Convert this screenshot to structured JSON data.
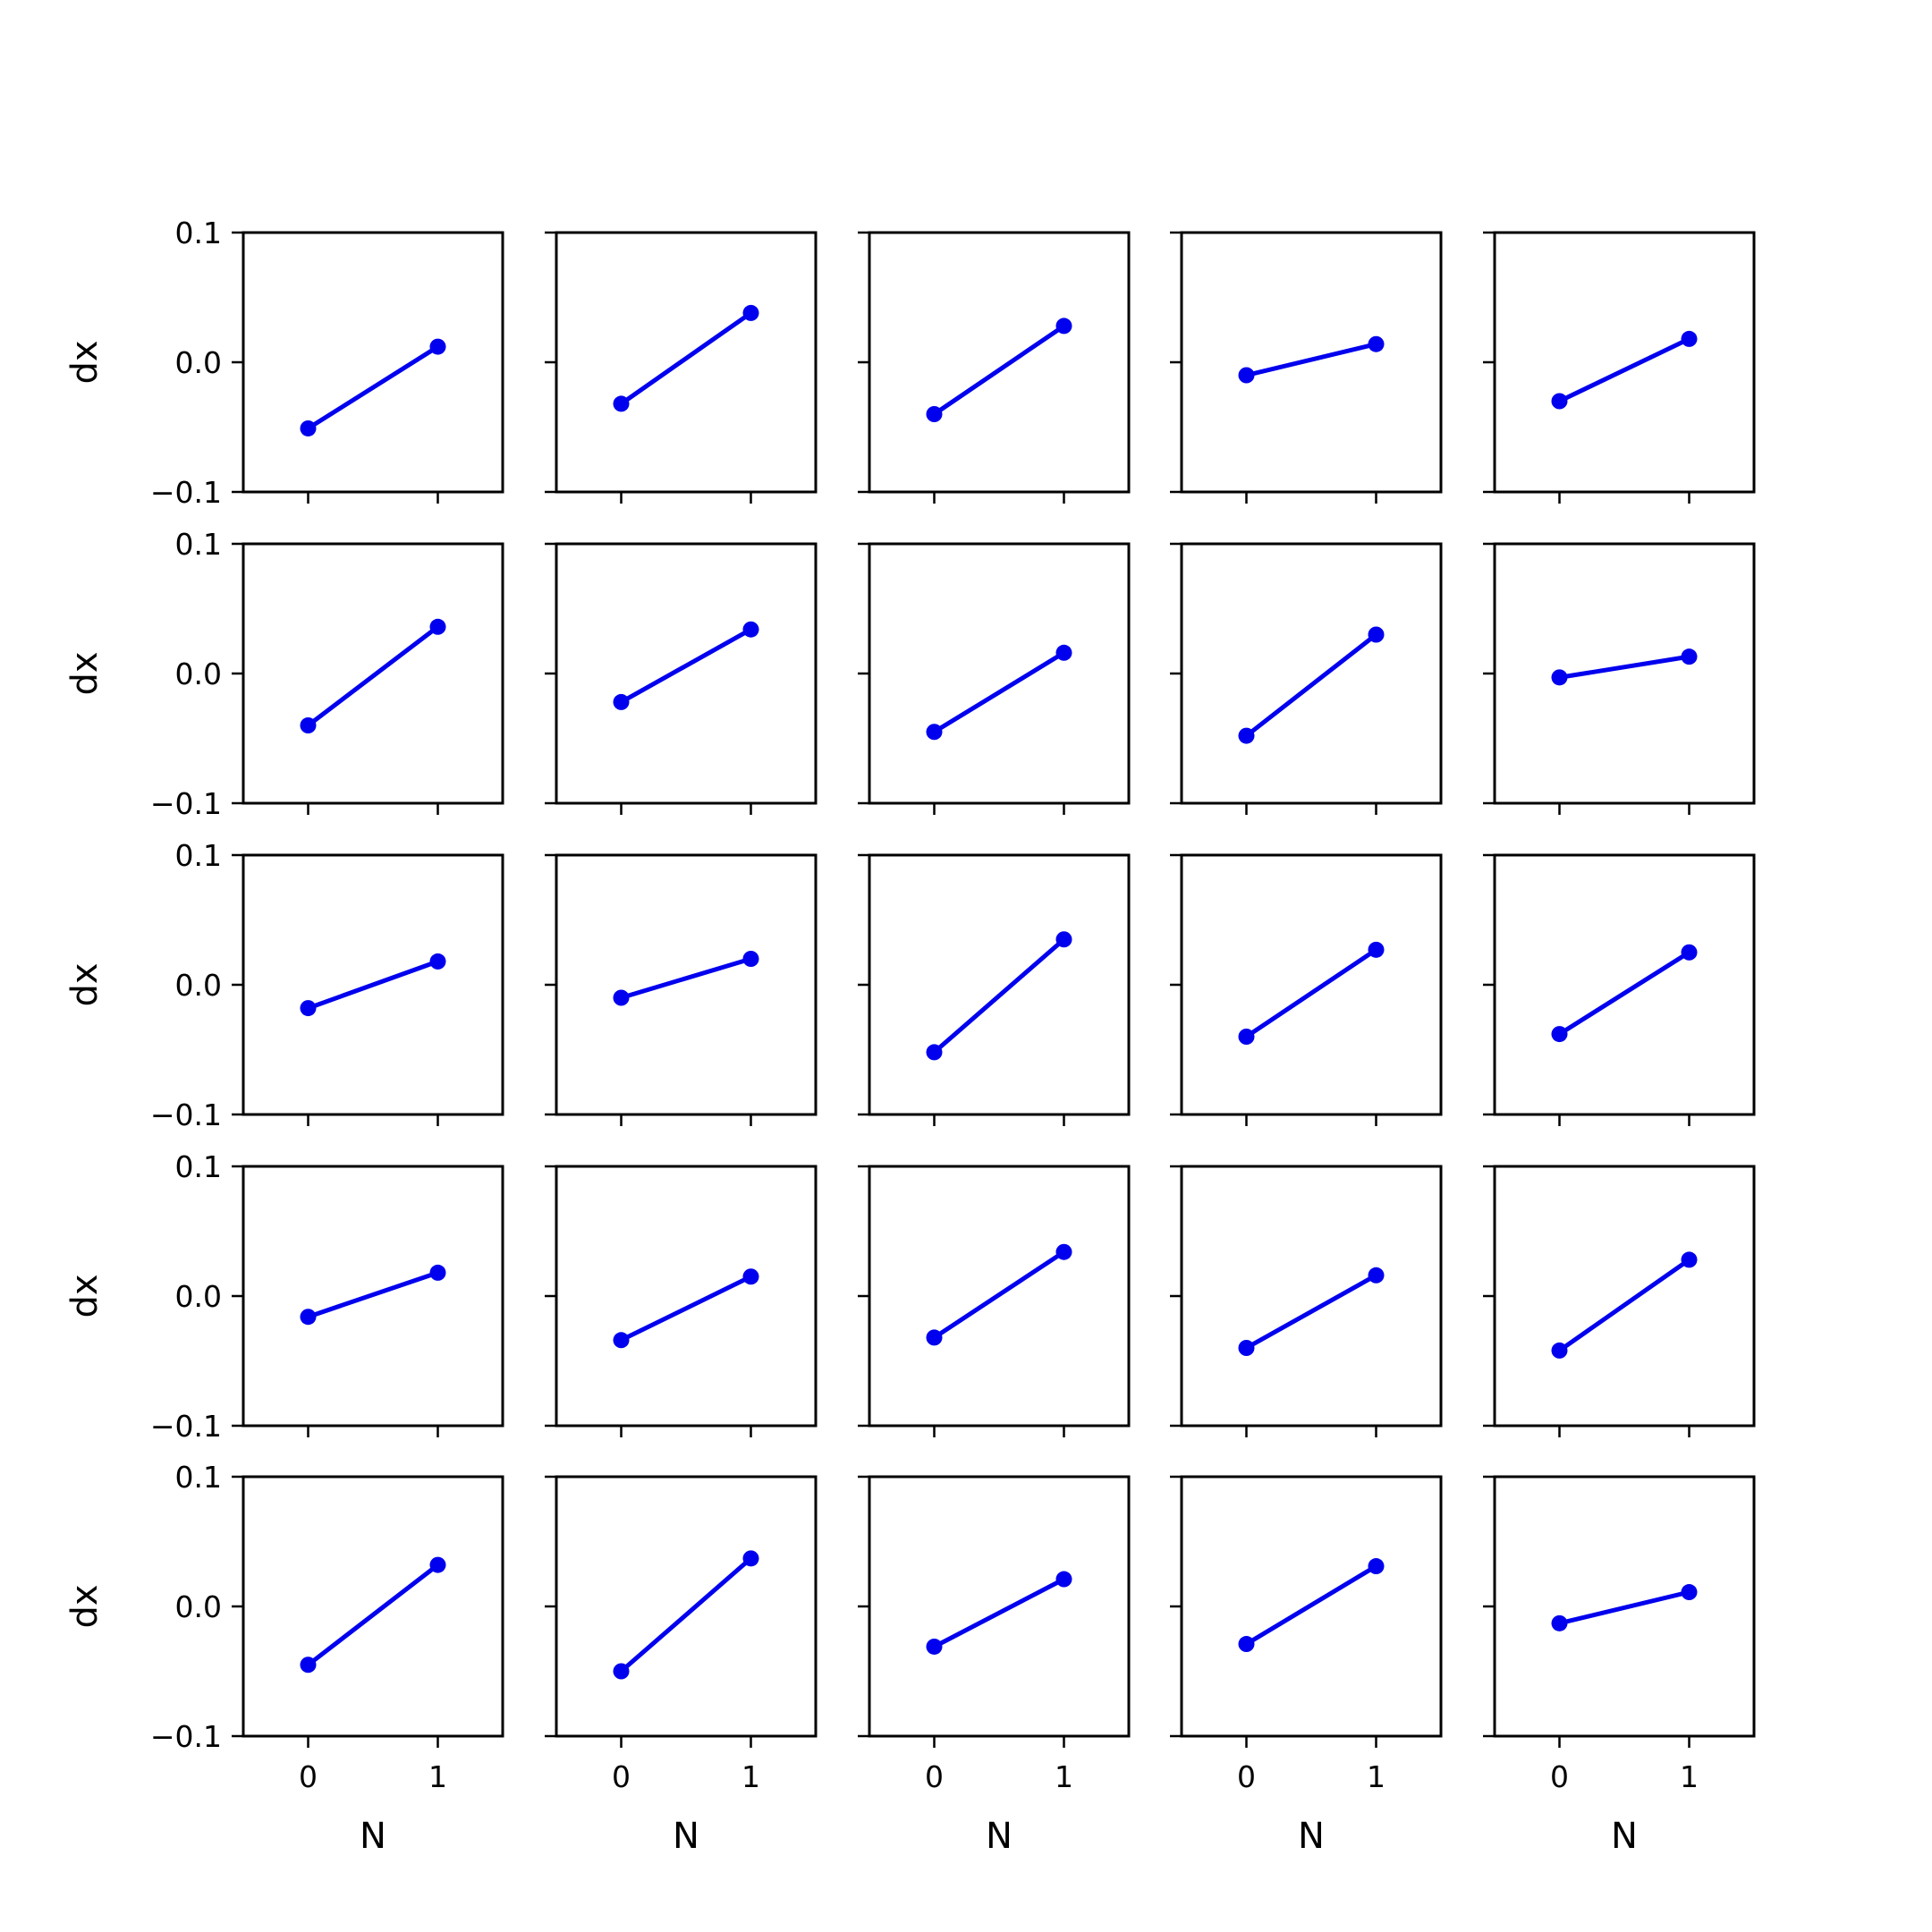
{
  "chart_data": {
    "type": "line",
    "layout": {
      "rows": 5,
      "cols": 5
    },
    "xlabel": "N",
    "ylabel": "dx",
    "xticks": [
      0,
      1
    ],
    "yticks": [
      -0.1,
      0.0,
      0.1
    ],
    "ytick_labels": [
      "−0.1",
      "0.0",
      "0.1"
    ],
    "xtick_labels": [
      "0",
      "1"
    ],
    "xlim": [
      -0.5,
      1.5
    ],
    "ylim": [
      -0.1,
      0.1
    ],
    "color": "#0000ee",
    "panels": [
      {
        "x": [
          0,
          1
        ],
        "y": [
          -0.051,
          0.012
        ]
      },
      {
        "x": [
          0,
          1
        ],
        "y": [
          -0.032,
          0.038
        ]
      },
      {
        "x": [
          0,
          1
        ],
        "y": [
          -0.04,
          0.028
        ]
      },
      {
        "x": [
          0,
          1
        ],
        "y": [
          -0.01,
          0.014
        ]
      },
      {
        "x": [
          0,
          1
        ],
        "y": [
          -0.03,
          0.018
        ]
      },
      {
        "x": [
          0,
          1
        ],
        "y": [
          -0.04,
          0.036
        ]
      },
      {
        "x": [
          0,
          1
        ],
        "y": [
          -0.022,
          0.034
        ]
      },
      {
        "x": [
          0,
          1
        ],
        "y": [
          -0.045,
          0.016
        ]
      },
      {
        "x": [
          0,
          1
        ],
        "y": [
          -0.048,
          0.03
        ]
      },
      {
        "x": [
          0,
          1
        ],
        "y": [
          -0.003,
          0.013
        ]
      },
      {
        "x": [
          0,
          1
        ],
        "y": [
          -0.018,
          0.018
        ]
      },
      {
        "x": [
          0,
          1
        ],
        "y": [
          -0.01,
          0.02
        ]
      },
      {
        "x": [
          0,
          1
        ],
        "y": [
          -0.052,
          0.035
        ]
      },
      {
        "x": [
          0,
          1
        ],
        "y": [
          -0.04,
          0.027
        ]
      },
      {
        "x": [
          0,
          1
        ],
        "y": [
          -0.038,
          0.025
        ]
      },
      {
        "x": [
          0,
          1
        ],
        "y": [
          -0.016,
          0.018
        ]
      },
      {
        "x": [
          0,
          1
        ],
        "y": [
          -0.034,
          0.015
        ]
      },
      {
        "x": [
          0,
          1
        ],
        "y": [
          -0.032,
          0.034
        ]
      },
      {
        "x": [
          0,
          1
        ],
        "y": [
          -0.04,
          0.016
        ]
      },
      {
        "x": [
          0,
          1
        ],
        "y": [
          -0.042,
          0.028
        ]
      },
      {
        "x": [
          0,
          1
        ],
        "y": [
          -0.045,
          0.032
        ]
      },
      {
        "x": [
          0,
          1
        ],
        "y": [
          -0.05,
          0.037
        ]
      },
      {
        "x": [
          0,
          1
        ],
        "y": [
          -0.031,
          0.021
        ]
      },
      {
        "x": [
          0,
          1
        ],
        "y": [
          -0.029,
          0.031
        ]
      },
      {
        "x": [
          0,
          1
        ],
        "y": [
          -0.013,
          0.011
        ]
      }
    ]
  }
}
